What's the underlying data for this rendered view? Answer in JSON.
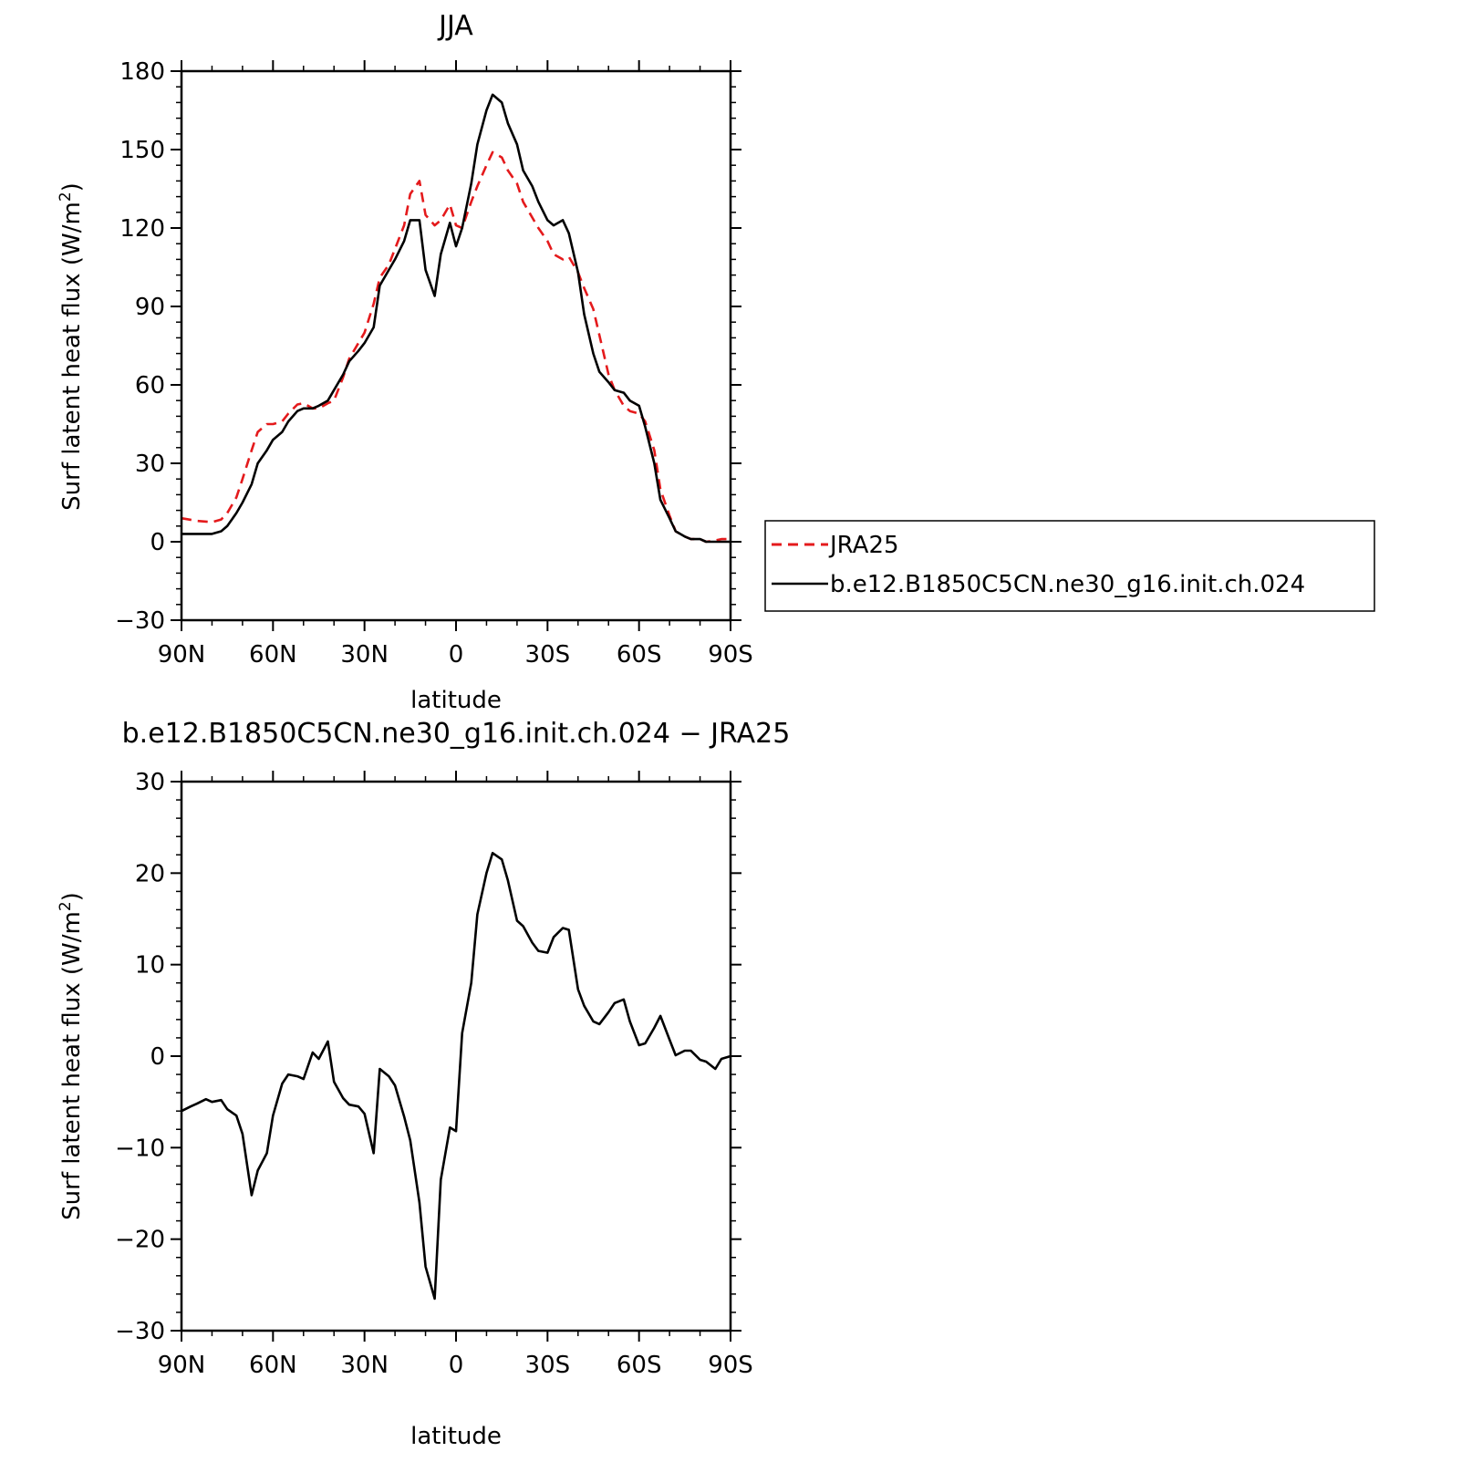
{
  "chart_data": [
    {
      "type": "line",
      "title": "JJA",
      "xlabel": "latitude",
      "ylabel": "Surf latent heat flux (W/m²)",
      "ylabel_main": "Surf latent heat flux (W/m",
      "ylabel_sup": "2",
      "ylabel_end": ")",
      "xlim": [
        90,
        -90
      ],
      "ylim": [
        -30,
        180
      ],
      "x_ticks": [
        90,
        60,
        30,
        0,
        -30,
        -60,
        -90
      ],
      "x_tick_labels": [
        "90N",
        "60N",
        "30N",
        "0",
        "30S",
        "60S",
        "90S"
      ],
      "y_ticks": [
        -30,
        0,
        30,
        60,
        90,
        120,
        150,
        180
      ],
      "y_tick_labels": [
        "−30",
        "0",
        "30",
        "60",
        "90",
        "120",
        "150",
        "180"
      ],
      "legend_position": "right",
      "series": [
        {
          "name": "JRA25",
          "color": "#e41a1c",
          "dash": "dashed",
          "x": [
            90,
            85,
            80,
            77,
            75,
            72,
            70,
            67,
            65,
            62,
            60,
            57,
            55,
            52,
            50,
            47,
            45,
            42,
            40,
            37,
            35,
            32,
            30,
            27,
            25,
            22,
            20,
            17,
            15,
            12,
            10,
            7,
            5,
            2,
            0,
            -2,
            -5,
            -7,
            -10,
            -12,
            -15,
            -17,
            -20,
            -22,
            -25,
            -27,
            -30,
            -32,
            -35,
            -37,
            -40,
            -42,
            -45,
            -47,
            -50,
            -52,
            -55,
            -57,
            -60,
            -62,
            -65,
            -67,
            -70,
            -72,
            -75,
            -77,
            -80,
            -82,
            -85,
            -87,
            -90
          ],
          "y": [
            9,
            8,
            7.5,
            8.5,
            11,
            17,
            24,
            35,
            42,
            45,
            45,
            46,
            49,
            52.5,
            53,
            51,
            51,
            53,
            54,
            63,
            70,
            76,
            80,
            91,
            101,
            106,
            112,
            121,
            133,
            138,
            125,
            121,
            123,
            129,
            121,
            120,
            130,
            136,
            144,
            149,
            147,
            142,
            137,
            130,
            124,
            120,
            115,
            110,
            108,
            109,
            103,
            97,
            89,
            79,
            64,
            58,
            52,
            50,
            49,
            46,
            35,
            20,
            10,
            4,
            2,
            1,
            1,
            0,
            0.5,
            1,
            1
          ]
        },
        {
          "name": "b.e12.B1850C5CN.ne30_g16.init.ch.024",
          "color": "#000000",
          "dash": "solid",
          "x": [
            90,
            85,
            80,
            77,
            75,
            72,
            70,
            67,
            65,
            62,
            60,
            57,
            55,
            52,
            50,
            47,
            45,
            42,
            40,
            37,
            35,
            32,
            30,
            27,
            25,
            22,
            20,
            17,
            15,
            12,
            10,
            7,
            5,
            2,
            0,
            -2,
            -5,
            -7,
            -10,
            -12,
            -15,
            -17,
            -20,
            -22,
            -25,
            -27,
            -30,
            -32,
            -35,
            -37,
            -40,
            -42,
            -45,
            -47,
            -50,
            -52,
            -55,
            -57,
            -60,
            -62,
            -65,
            -67,
            -70,
            -72,
            -75,
            -77,
            -80,
            -82,
            -85,
            -87,
            -90
          ],
          "y": [
            3,
            3,
            3,
            4,
            6,
            11,
            15,
            22,
            30,
            35,
            39,
            42,
            46,
            50,
            51,
            51,
            52,
            54,
            58,
            64,
            69,
            73,
            76,
            82,
            98,
            104,
            108,
            115,
            123,
            123,
            104,
            94,
            110,
            122,
            113,
            120,
            137,
            152,
            165,
            171,
            168,
            160,
            152,
            142,
            136,
            130,
            123,
            121,
            123,
            118,
            103,
            87,
            72,
            65,
            61,
            58,
            57,
            54,
            52,
            44,
            30,
            16,
            9,
            4,
            2,
            1,
            1,
            0,
            0,
            0,
            0
          ]
        }
      ]
    },
    {
      "type": "line",
      "title": "b.e12.B1850C5CN.ne30_g16.init.ch.024 − JRA25",
      "xlabel": "latitude",
      "ylabel": "Surf latent heat flux (W/m²)",
      "ylabel_main": "Surf latent heat flux (W/m",
      "ylabel_sup": "2",
      "ylabel_end": ")",
      "xlim": [
        90,
        -90
      ],
      "ylim": [
        -30,
        30
      ],
      "x_ticks": [
        90,
        60,
        30,
        0,
        -30,
        -60,
        -90
      ],
      "x_tick_labels": [
        "90N",
        "60N",
        "30N",
        "0",
        "30S",
        "60S",
        "90S"
      ],
      "y_ticks": [
        -30,
        -20,
        -10,
        0,
        10,
        20,
        30
      ],
      "y_tick_labels": [
        "−30",
        "−20",
        "−10",
        "0",
        "10",
        "20",
        "30"
      ],
      "series": [
        {
          "color": "#000000",
          "dash": "solid",
          "x": [
            90,
            87,
            85,
            82,
            80,
            77,
            75,
            72,
            70,
            67,
            65,
            62,
            60,
            57,
            55,
            52,
            50,
            47,
            45,
            42,
            40,
            37,
            35,
            32,
            30,
            27,
            25,
            22,
            20,
            17,
            15,
            12,
            10,
            7,
            5,
            2,
            0,
            -2,
            -5,
            -7,
            -10,
            -12,
            -15,
            -17,
            -20,
            -22,
            -25,
            -27,
            -30,
            -32,
            -35,
            -37,
            -40,
            -42,
            -45,
            -47,
            -50,
            -52,
            -55,
            -57,
            -60,
            -62,
            -65,
            -67,
            -70,
            -72,
            -75,
            -77,
            -80,
            -82,
            -85,
            -87,
            -90
          ],
          "y": [
            -6,
            -5.5,
            -5.2,
            -4.7,
            -5,
            -4.8,
            -5.8,
            -6.5,
            -8.5,
            -15.2,
            -12.5,
            -10.6,
            -6.5,
            -3,
            -2,
            -2.2,
            -2.5,
            0.4,
            -0.3,
            1.6,
            -2.8,
            -4.6,
            -5.3,
            -5.5,
            -6.3,
            -10.6,
            -1.4,
            -2.2,
            -3.2,
            -6.6,
            -9.2,
            -16,
            -23,
            -26.5,
            -13.5,
            -7.8,
            -8.2,
            2.5,
            8,
            15.5,
            20,
            22.2,
            21.5,
            19.2,
            14.8,
            14.2,
            12.4,
            11.5,
            11.3,
            13,
            14,
            13.8,
            7.3,
            5.5,
            3.8,
            3.5,
            4.8,
            5.8,
            6.2,
            3.8,
            1.2,
            1.4,
            3.1,
            4.4,
            1.8,
            0.1,
            0.6,
            0.6,
            -0.4,
            -0.6,
            -1.4,
            -0.3,
            0
          ]
        }
      ]
    }
  ]
}
